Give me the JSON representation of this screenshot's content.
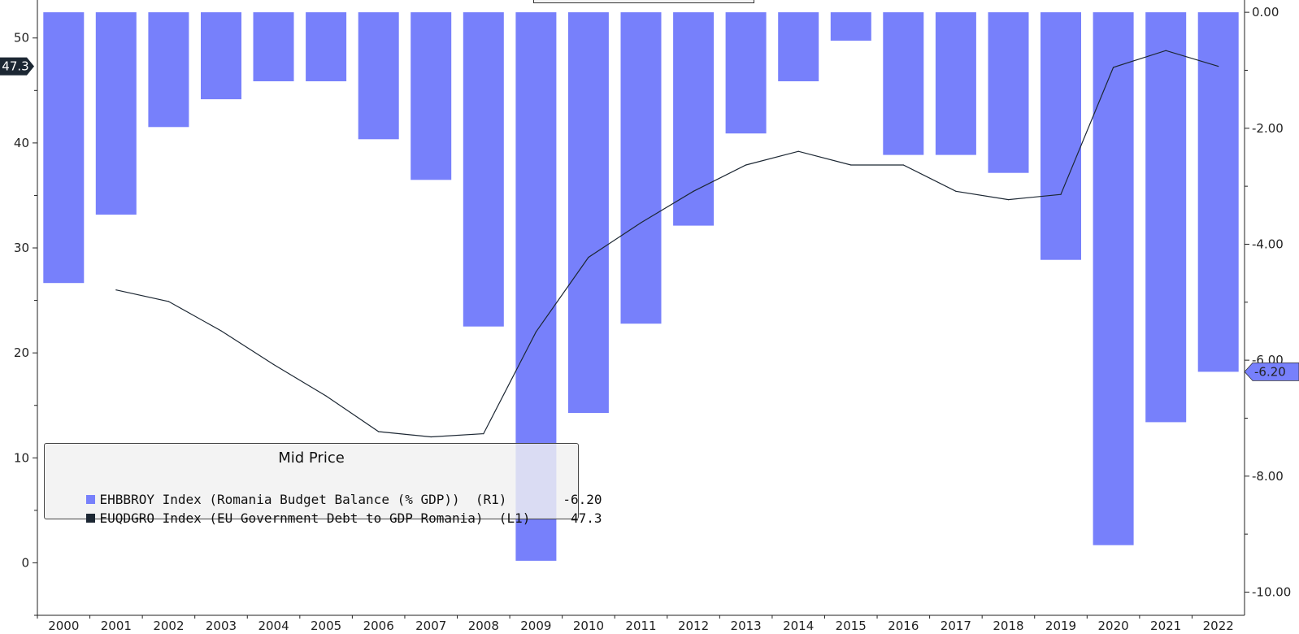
{
  "chart_data": {
    "type": "bar",
    "categories": [
      "2000",
      "2001",
      "2002",
      "2003",
      "2004",
      "2005",
      "2006",
      "2007",
      "2008",
      "2009",
      "2010",
      "2011",
      "2012",
      "2013",
      "2014",
      "2015",
      "2016",
      "2017",
      "2018",
      "2019",
      "2020",
      "2021",
      "2022"
    ],
    "series": [
      {
        "name": "EHBBROY Index (Romania Budget Balance (% GDP))  (R1)",
        "type": "bar",
        "axis": "right",
        "values": [
          -4.67,
          -3.49,
          -1.98,
          -1.5,
          -1.19,
          -1.19,
          -2.19,
          -2.89,
          -5.42,
          -9.46,
          -6.91,
          -5.37,
          -3.68,
          -2.09,
          -1.19,
          -0.49,
          -2.46,
          -2.46,
          -2.77,
          -4.27,
          -9.19,
          -7.07,
          -6.2
        ]
      },
      {
        "name": "EUQDGRO Index (EU Government Debt to GDP Romania)  (L1)",
        "type": "line",
        "axis": "left",
        "values": [
          null,
          26.0,
          24.9,
          22.1,
          18.9,
          15.9,
          12.5,
          12.0,
          12.3,
          22.0,
          29.1,
          32.4,
          35.4,
          37.9,
          39.2,
          37.9,
          37.9,
          35.4,
          34.6,
          35.1,
          47.2,
          48.8,
          47.3
        ]
      }
    ],
    "y_left": {
      "ylim": [
        -5,
        53
      ],
      "ticks": [
        0,
        10,
        20,
        30,
        40,
        50
      ],
      "current_label": "47.3"
    },
    "y_right": {
      "ylim": [
        -10.4,
        0.1
      ],
      "ticks": [
        "0.00",
        "-2.00",
        "-4.00",
        "-6.00",
        "-8.00",
        "-10.00"
      ],
      "current_label": "-6.20"
    },
    "legend": {
      "title": "Mid Price",
      "placement": "bottom-left",
      "items": [
        {
          "label": "EHBBROY Index (Romania Budget Balance (% GDP))  (R1)",
          "value": "-6.20",
          "color": "#7780fb"
        },
        {
          "label": "EUQDGRO Index (EU Government Debt to GDP Romania)  (L1)",
          "value": "47.3",
          "color": "#1c2733"
        }
      ]
    },
    "colors": {
      "bar": "#7780fb",
      "line": "#1c2733",
      "left_marker": "#1c2733",
      "right_marker": "#7780fb"
    },
    "grid": false
  }
}
